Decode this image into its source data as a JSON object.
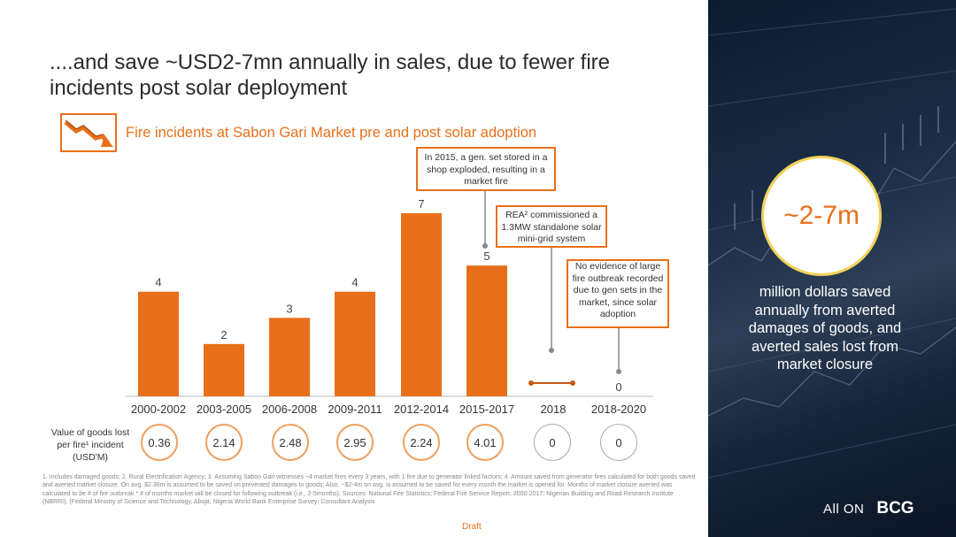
{
  "title": "....and save ~USD2-7mn annually in sales, due to fewer fire incidents post solar deployment",
  "subtitle": "Fire incidents at Sabon Gari Market pre and post solar adoption",
  "colors": {
    "accent": "#e8701a",
    "bar": "#e8701a",
    "circle_border": "#f2d25b",
    "panel": "#1b2d45"
  },
  "chart_data": {
    "type": "bar",
    "title": "Fire incidents at Sabon Gari Market pre and post solar adoption",
    "categories": [
      "2000-2002",
      "2003-2005",
      "2006-2008",
      "2009-2011",
      "2012-2014",
      "2015-2017",
      "2018",
      "2018-2020"
    ],
    "values": [
      4,
      2,
      3,
      4,
      7,
      5,
      null,
      0
    ],
    "value_labels": [
      "4",
      "2",
      "3",
      "4",
      "7",
      "5",
      "",
      "0"
    ],
    "xlabel": "",
    "ylabel": "",
    "ylim": [
      0,
      7
    ],
    "grid": false
  },
  "callouts": {
    "c2015": "In 2015, a gen. set stored in a shop exploded, resulting in a market fire",
    "rea": "REA² commissioned a 1.3MW standalone solar mini-grid system",
    "noevidence": "No evidence of large fire outbreak recorded due to gen sets in the market, since solar adoption"
  },
  "value_row": {
    "label": "Value of goods lost per fire¹ incident (USD'M)",
    "values": [
      "0.36",
      "2.14",
      "2.48",
      "2.95",
      "2.24",
      "4.01",
      "0",
      "0"
    ]
  },
  "highlight": {
    "value": "~2-7m",
    "text": "million dollars saved annually from averted damages of goods, and averted sales lost from market closure"
  },
  "footnote": "1.      Includes damaged goods; 2. Rural Electrification Agency; 3. Assuming Sabon Gari witnesses ~4 market fires every 3 years, with 1 fire due to generator linked factors; 4. Amount saved from generator fires calculated for both goods saved and averted market closure. On avg. $2.36m is assumed to be saved on prevented damages to goods; Also, ~$2-4m on avg. is assumed to be saved for every month the market is opened for. Months of market closure averted was calculated to be # of fire outbreak * # of months market will be closed for following outbreak (i.e., 2-5months). Sources: National Fire Statistics; Federal Fire Service Report, 2000-2017; Nigerian Building and Road Research Institute (NBRRI), (Federal Ministry of Science and Technology, Abuja; Nigeria World Bank Enterprise Survey; Consultant Analysis",
  "draft": "Draft",
  "logos": {
    "allon": "All ON",
    "bcg": "BCG"
  }
}
